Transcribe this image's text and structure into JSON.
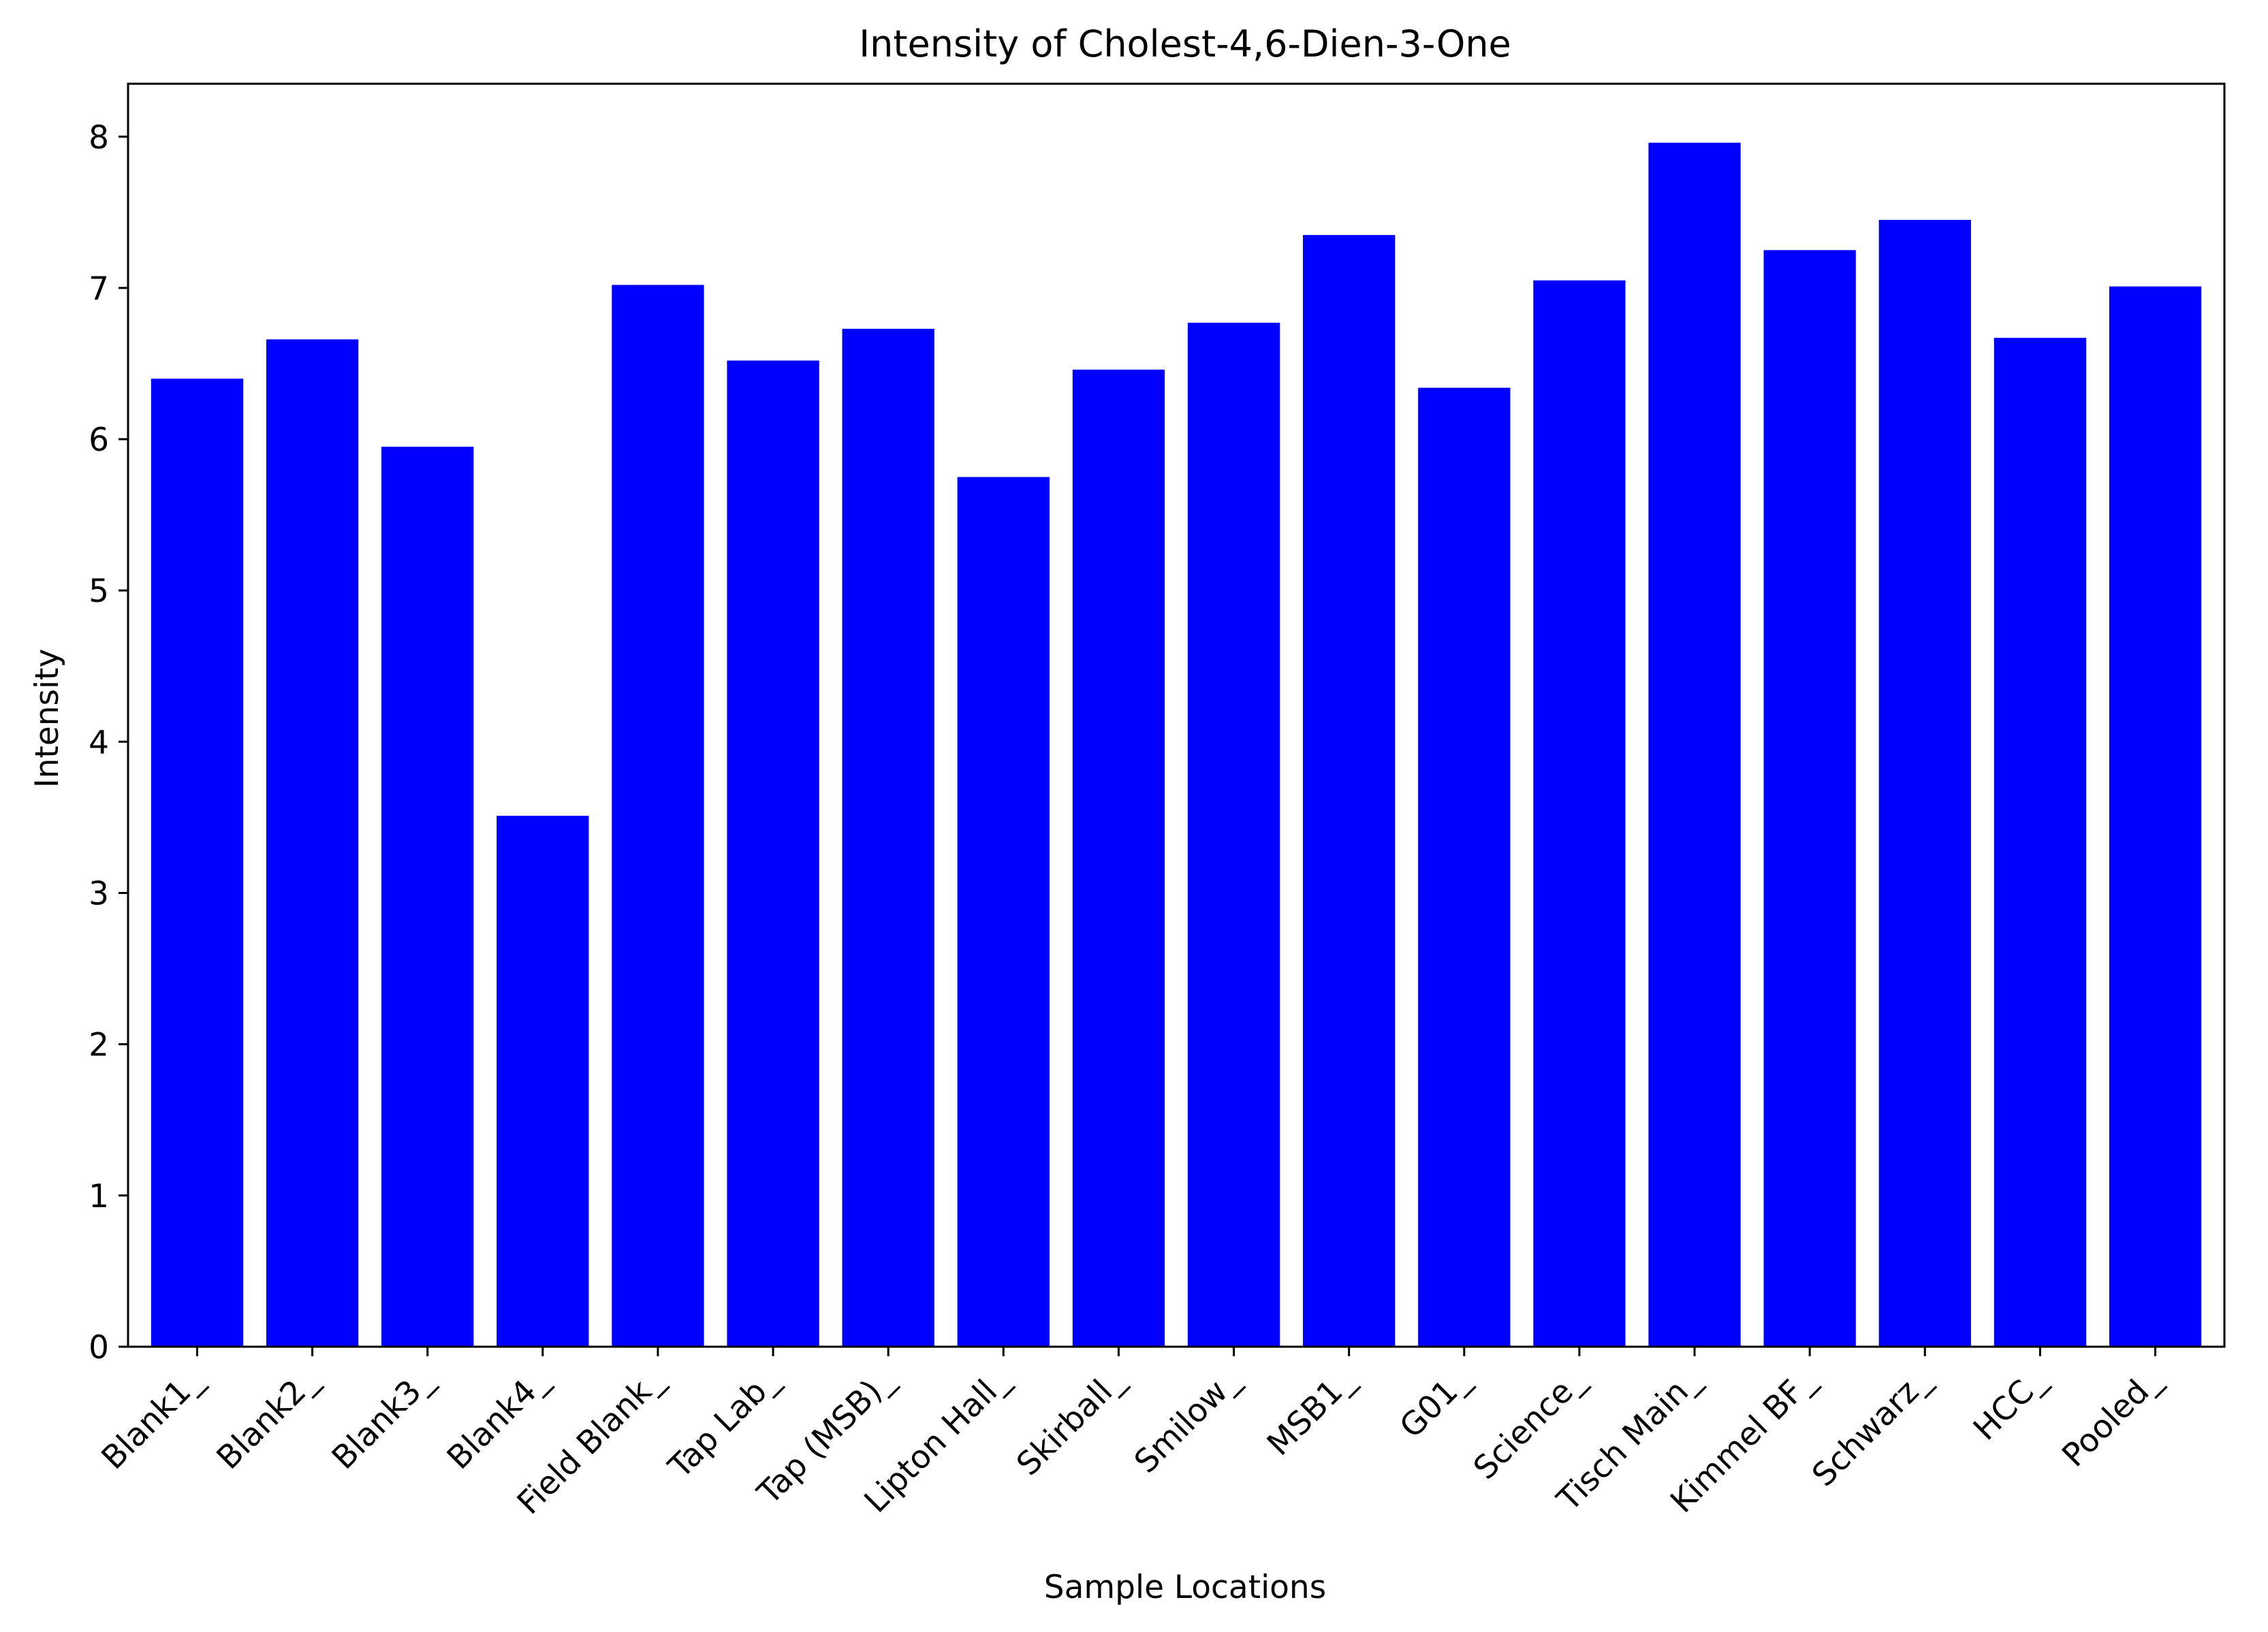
{
  "chart_data": {
    "type": "bar",
    "title": "Intensity of Cholest-4,6-Dien-3-One",
    "xlabel": "Sample Locations",
    "ylabel": "Intensity",
    "categories": [
      "Blank1_",
      "Blank2_",
      "Blank3_",
      "Blank4_",
      "Field Blank_",
      "Tap Lab_",
      "Tap (MSB)_",
      "Lipton Hall_",
      "Skirball_",
      "Smilow_",
      "MSB1_",
      "G01_",
      "Science_",
      "Tisch Main_",
      "Kimmel BF_",
      "Schwarz_",
      "HCC_",
      "Pooled_"
    ],
    "values": [
      6.4,
      6.66,
      5.95,
      3.51,
      7.02,
      6.52,
      6.73,
      5.75,
      6.46,
      6.77,
      7.35,
      6.34,
      7.05,
      7.96,
      7.25,
      7.45,
      6.67,
      7.01
    ],
    "ylim": [
      0,
      8.35
    ],
    "yticks": [
      0,
      1,
      2,
      3,
      4,
      5,
      6,
      7,
      8
    ],
    "bar_color": "#0000ff",
    "grid": false,
    "legend": false
  }
}
